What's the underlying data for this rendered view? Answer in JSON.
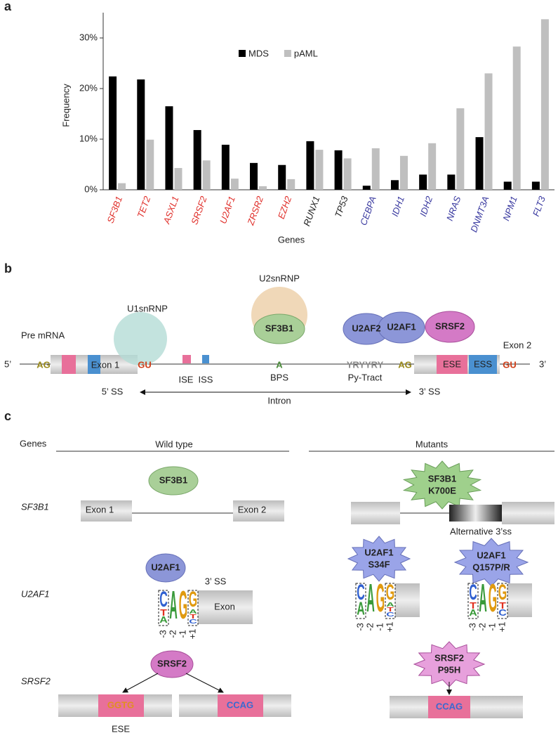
{
  "chart_data": {
    "type": "bar",
    "panel": "a",
    "categories": [
      "SF3B1",
      "TET2",
      "ASXL1",
      "SRSF2",
      "U2AF1",
      "ZRSR2",
      "EZH2",
      "RUNX1",
      "TP53",
      "CEBPA",
      "IDH1",
      "IDH2",
      "NRAS",
      "DNMT3A",
      "NPM1",
      "FLT3"
    ],
    "category_colors": [
      "#e0302b",
      "#e0302b",
      "#e0302b",
      "#e0302b",
      "#e0302b",
      "#e0302b",
      "#e0302b",
      "#222222",
      "#222222",
      "#3a3aa0",
      "#3a3aa0",
      "#3a3aa0",
      "#3a3aa0",
      "#3a3aa0",
      "#3a3aa0",
      "#3a3aa0"
    ],
    "series": [
      {
        "name": "MDS",
        "color": "#000000",
        "values": [
          22.4,
          21.8,
          16.5,
          11.8,
          8.9,
          5.3,
          4.9,
          9.6,
          7.8,
          0.8,
          1.9,
          3.0,
          3.0,
          10.4,
          1.6,
          1.6
        ]
      },
      {
        "name": "pAML",
        "color": "#bfbfbf",
        "values": [
          1.3,
          9.9,
          4.3,
          5.8,
          2.2,
          0.7,
          2.1,
          7.9,
          6.2,
          8.2,
          6.7,
          9.2,
          16.1,
          23.0,
          28.3,
          33.7
        ]
      }
    ],
    "ylim": [
      0,
      35
    ],
    "yticks": [
      {
        "value": 0,
        "label": "0%"
      },
      {
        "value": 10,
        "label": "10%"
      },
      {
        "value": 20,
        "label": "20%"
      },
      {
        "value": 30,
        "label": "30%"
      }
    ],
    "ylabel": "Frequency",
    "xlabel": "Genes"
  },
  "panel_b": {
    "label": "b",
    "pre_mrna": "Pre mRNA",
    "five_prime": "5’",
    "three_prime": "3’",
    "u1": "U1snRNP",
    "u2": "U2snRNP",
    "ag_left": "AG",
    "exon1": "Exon 1",
    "gu_left": "GU",
    "ise": "ISE",
    "iss": "ISS",
    "sf3b1": "SF3B1",
    "a": "A",
    "bps": "BPS",
    "u2af2": "U2AF2",
    "u2af1": "U2AF1",
    "srsf2": "SRSF2",
    "yr": "YRYYRY",
    "py": "Py-Tract",
    "ag_right": "AG",
    "ese": "ESE",
    "ess": "ESS",
    "gu_right": "GU",
    "exon2": "Exon 2",
    "ss5": "5’ SS",
    "intron": "Intron",
    "ss3": "3’ SS"
  },
  "panel_c": {
    "label": "c",
    "genes_header": "Genes",
    "wild_type": "Wild type",
    "mutants": "Mutants",
    "rows": [
      "SF3B1",
      "U2AF1",
      "SRSF2"
    ],
    "wt_sf3b1": "SF3B1",
    "exon1": "Exon 1",
    "exon2": "Exon 2",
    "mut_sf3b1": [
      "SF3B1",
      "K700E"
    ],
    "alt": "Alternative 3’ss",
    "wt_u2af1": "U2AF1",
    "ss3": "3’ SS",
    "exon": "Exon",
    "mut_s34f": [
      "U2AF1",
      "S34F"
    ],
    "mut_q157": [
      "U2AF1",
      "Q157P/R"
    ],
    "wt_srsf2": "SRSF2",
    "ggtg": "GGTG",
    "ccag": "CCAG",
    "ese": "ESE",
    "mut_p95h": [
      "SRSF2",
      "P95H"
    ],
    "ccag_mut": "CCAG",
    "logo_positions": [
      "-3",
      "-2",
      "-1",
      "+1"
    ],
    "logos": [
      {
        "columns": [
          [
            "C",
            "T",
            "A"
          ],
          [
            "A"
          ],
          [
            "G"
          ],
          [
            "G",
            "A",
            "T",
            "C"
          ]
        ]
      },
      {
        "columns": [
          [
            "C",
            "A"
          ],
          [
            "A"
          ],
          [
            "G"
          ],
          [
            "G",
            "A",
            "T",
            "C"
          ]
        ]
      },
      {
        "columns": [
          [
            "C",
            "T",
            "A"
          ],
          [
            "A"
          ],
          [
            "G"
          ],
          [
            "G",
            "T",
            "C"
          ]
        ]
      }
    ]
  }
}
